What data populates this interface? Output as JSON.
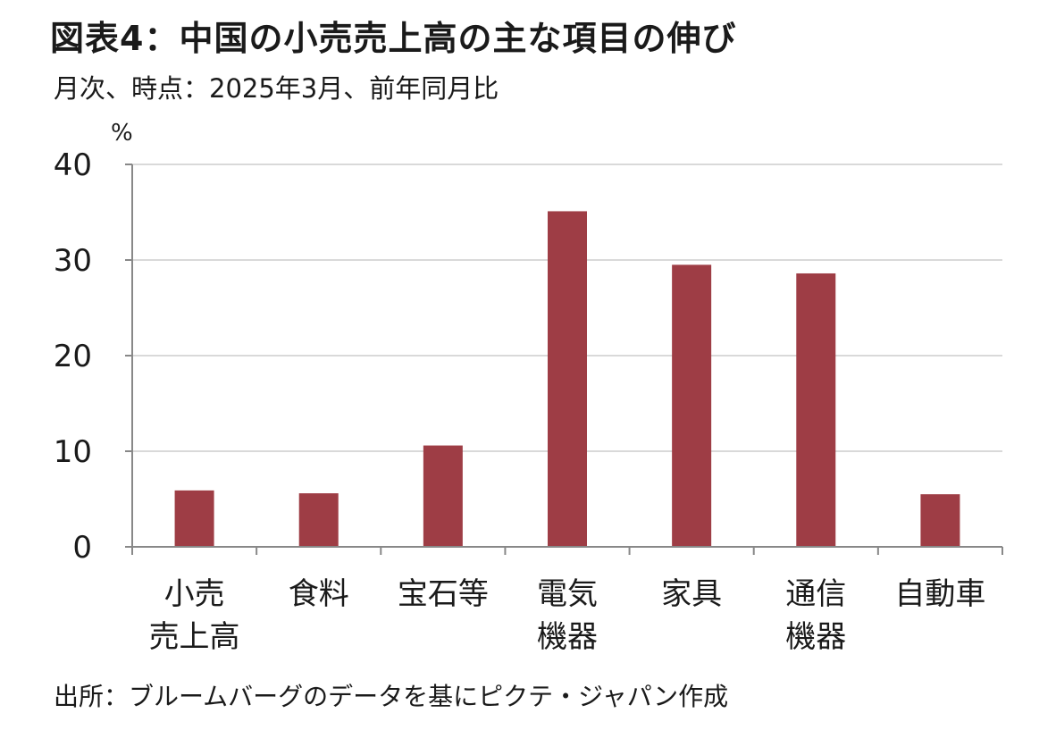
{
  "header": {
    "title": "図表4：中国の小売売上高の主な項目の伸び",
    "subtitle": "月次、時点：2025年3月、前年同月比"
  },
  "footer": {
    "source": "出所：ブルームバーグのデータを基にピクテ・ジャパン作成"
  },
  "colors": {
    "bar": "#9e3d45",
    "grid": "#d9d9d9",
    "axis": "#888888"
  },
  "chart_data": {
    "type": "bar",
    "title": "図表4：中国の小売売上高の主な項目の伸び",
    "subtitle": "月次、時点：2025年3月、前年同月比",
    "ylabel": "%",
    "xlabel": "",
    "categories": [
      [
        "小売",
        "売上高"
      ],
      [
        "食料"
      ],
      [
        "宝石等"
      ],
      [
        "電気",
        "機器"
      ],
      [
        "家具"
      ],
      [
        "通信",
        "機器"
      ],
      [
        "自動車"
      ]
    ],
    "values": [
      5.9,
      5.6,
      10.6,
      35.1,
      29.5,
      28.6,
      5.5
    ],
    "ylim": [
      0,
      40
    ],
    "yticks": [
      "0",
      "10",
      "20",
      "30",
      "40"
    ],
    "grid": true,
    "legend": "none"
  }
}
